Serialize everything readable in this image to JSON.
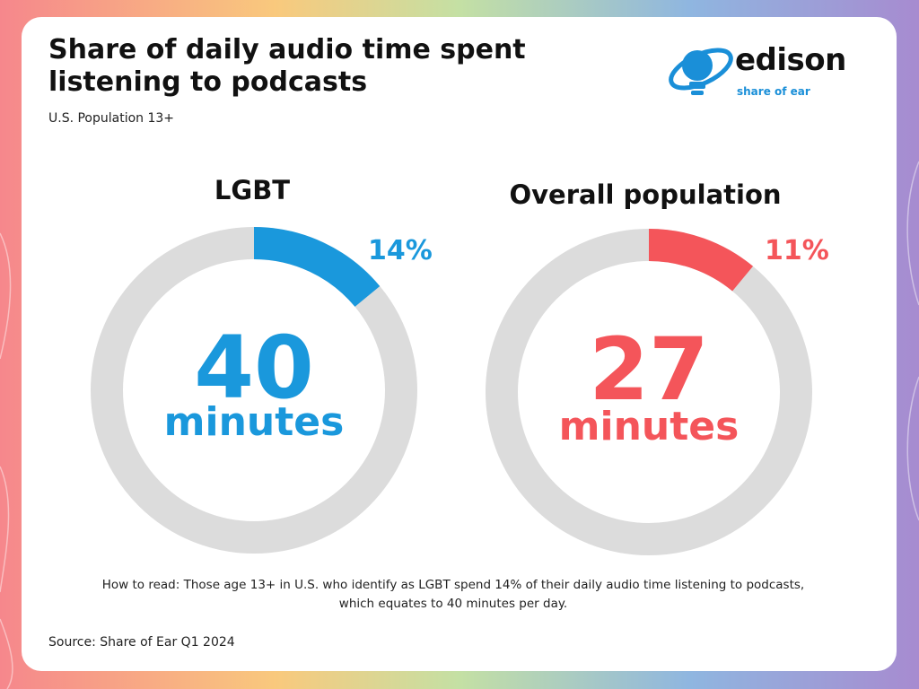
{
  "header": {
    "title": "Share of daily audio time spent listening to podcasts",
    "subtitle": "U.S. Population 13+"
  },
  "logo": {
    "word": "edison",
    "tagline": "share of ear"
  },
  "colors": {
    "lgbt": "#1a98dc",
    "overall": "#f4555a",
    "track": "#dcdcdc",
    "bg_gradient": [
      "#f6878c",
      "#f9c97d",
      "#c4e0a4",
      "#8fb6e0",
      "#a78bd0"
    ]
  },
  "chart_data": [
    {
      "type": "pie",
      "title": "LGBT",
      "value_percent": 14,
      "value_label": "14%",
      "center_number": "40",
      "center_unit": "minutes",
      "color": "#1a98dc"
    },
    {
      "type": "pie",
      "title": "Overall population",
      "value_percent": 11,
      "value_label": "11%",
      "center_number": "27",
      "center_unit": "minutes",
      "color": "#f4555a"
    }
  ],
  "footer": {
    "note": "How to read: Those age 13+ in U.S. who identify as LGBT spend 14% of their daily audio time listening to podcasts, which equates to 40 minutes per day.",
    "source": "Source: Share of Ear Q1 2024"
  }
}
